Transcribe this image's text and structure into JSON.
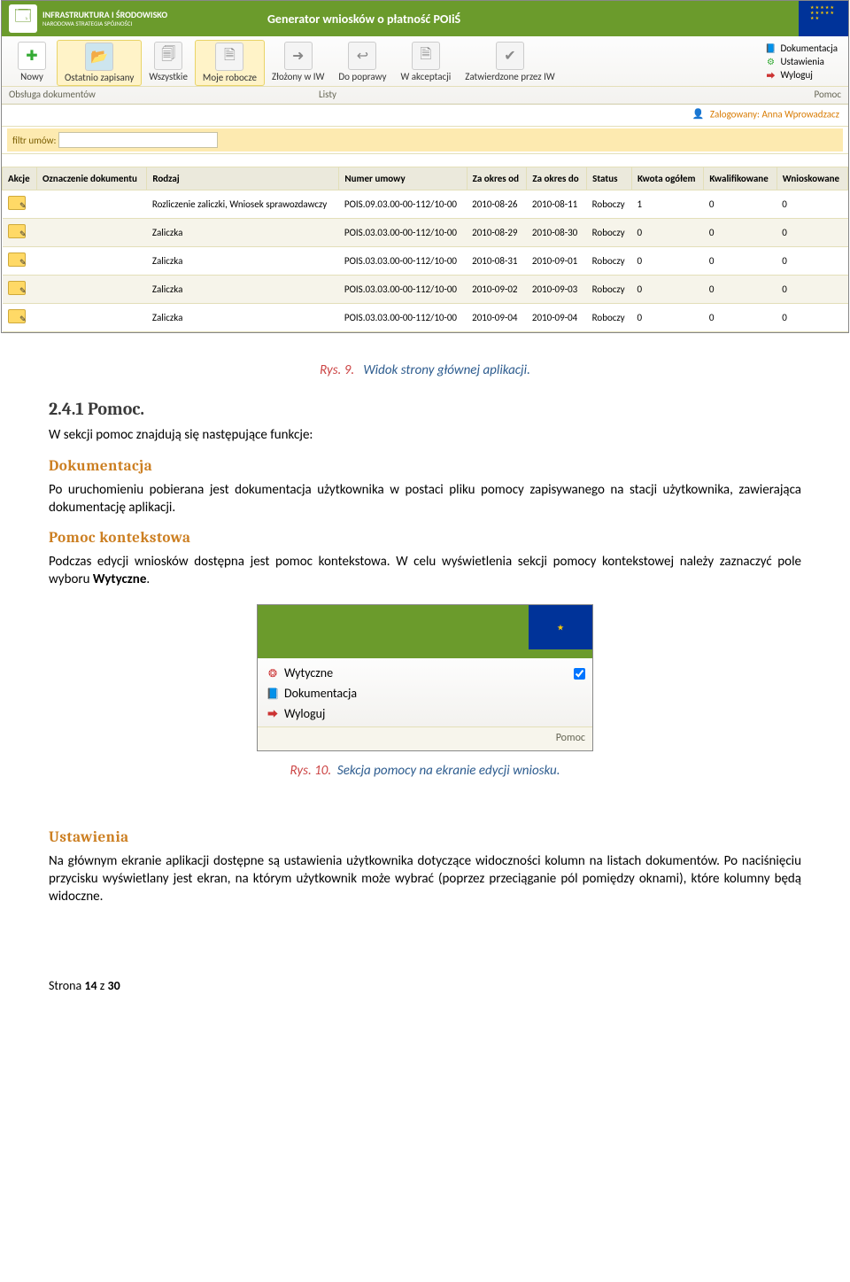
{
  "banner": {
    "logo_line1": "INFRASTRUKTURA",
    "logo_line2": "I ŚRODOWISKO",
    "logo_sub": "NARODOWA STRATEGIA SPÓJNOŚCI",
    "title": "Generator wniosków o płatność POIiŚ"
  },
  "toolbar": {
    "items": [
      {
        "label": "Nowy",
        "icoClass": "ico-new",
        "glyph": "✚"
      },
      {
        "label": "Ostatnio zapisany",
        "icoClass": "ico-folder",
        "glyph": "📂",
        "active": true
      },
      {
        "label": "Wszystkie",
        "icoClass": "ico-doc",
        "glyph": "🗐"
      },
      {
        "label": "Moje robocze",
        "icoClass": "ico-doc",
        "glyph": "🗎",
        "active": true
      },
      {
        "label": "Złożony w IW",
        "icoClass": "ico-doc",
        "glyph": "➜"
      },
      {
        "label": "Do poprawy",
        "icoClass": "ico-doc",
        "glyph": "↩"
      },
      {
        "label": "W akceptacji",
        "icoClass": "ico-doc",
        "glyph": "🗎"
      },
      {
        "label": "Zatwierdzone przez IW",
        "icoClass": "ico-doc",
        "glyph": "✔"
      }
    ],
    "right": [
      {
        "label": "Dokumentacja",
        "ico": "blue",
        "glyph": "📘"
      },
      {
        "label": "Ustawienia",
        "ico": "green",
        "glyph": "⚙"
      },
      {
        "label": "Wyloguj",
        "ico": "red",
        "glyph": "⮕"
      }
    ],
    "footer_left": "Obsługa dokumentów",
    "footer_mid": "Listy",
    "footer_right": "Pomoc"
  },
  "login": {
    "prefix": "Zalogowany:",
    "user": "Anna Wprowadzacz"
  },
  "filter": {
    "label": "filtr umów:",
    "value": ""
  },
  "table": {
    "columns": [
      "Akcje",
      "Oznaczenie dokumentu",
      "Rodzaj",
      "Numer umowy",
      "Za okres od",
      "Za okres do",
      "Status",
      "Kwota ogółem",
      "Kwalifikowane",
      "Wnioskowane"
    ],
    "rows": [
      [
        "",
        "",
        "Rozliczenie zaliczki, Wniosek sprawozdawczy",
        "POIS.09.03.00-00-112/10-00",
        "2010-08-26",
        "2010-08-11",
        "Roboczy",
        "1",
        "0",
        "0"
      ],
      [
        "",
        "",
        "Zaliczka",
        "POIS.03.03.00-00-112/10-00",
        "2010-08-29",
        "2010-08-30",
        "Roboczy",
        "0",
        "0",
        "0"
      ],
      [
        "",
        "",
        "Zaliczka",
        "POIS.03.03.00-00-112/10-00",
        "2010-08-31",
        "2010-09-01",
        "Roboczy",
        "0",
        "0",
        "0"
      ],
      [
        "",
        "",
        "Zaliczka",
        "POIS.03.03.00-00-112/10-00",
        "2010-09-02",
        "2010-09-03",
        "Roboczy",
        "0",
        "0",
        "0"
      ],
      [
        "",
        "",
        "Zaliczka",
        "POIS.03.03.00-00-112/10-00",
        "2010-09-04",
        "2010-09-04",
        "Roboczy",
        "0",
        "0",
        "0"
      ]
    ]
  },
  "fig9": {
    "rys": "Rys. 9.",
    "caption": "Widok strony głównej aplikacji."
  },
  "section": {
    "heading": "2.4.1 Pomoc.",
    "intro": "W sekcji pomoc znajdują się następujące funkcje:",
    "h_dok": "Dokumentacja",
    "p_dok": "Po uruchomieniu pobierana jest dokumentacja użytkownika w postaci pliku pomocy zapisywanego na stacji użytkownika, zawierająca dokumentację aplikacji.",
    "h_pk": "Pomoc kontekstowa",
    "p_pk1": "Podczas edycji wniosków dostępna jest pomoc kontekstowa. W celu wyświetlenia sekcji pomocy kontekstowej należy zaznaczyć pole wyboru ",
    "p_pk_b": "Wytyczne",
    "p_pk2": "."
  },
  "shot2": {
    "items": [
      {
        "label": "Wytyczne",
        "ico": "red",
        "glyph": "❂",
        "check": true
      },
      {
        "label": "Dokumentacja",
        "ico": "blue",
        "glyph": "📘"
      },
      {
        "label": "Wyloguj",
        "ico": "red",
        "glyph": "⮕"
      }
    ],
    "footer": "Pomoc"
  },
  "fig10": {
    "rys": "Rys. 10.",
    "caption": "Sekcja pomocy na ekranie edycji wniosku."
  },
  "ust": {
    "h": "Ustawienia",
    "p": "Na głównym ekranie aplikacji dostępne są ustawienia użytkownika dotyczące widoczności kolumn na listach dokumentów. Po naciśnięciu przycisku wyświetlany jest ekran, na którym użytkownik może wybrać (poprzez przeciąganie pól pomiędzy oknami), które kolumny będą widoczne."
  },
  "pagefoot": {
    "pre": "Strona ",
    "cur": "14",
    "mid": " z ",
    "tot": "30"
  }
}
